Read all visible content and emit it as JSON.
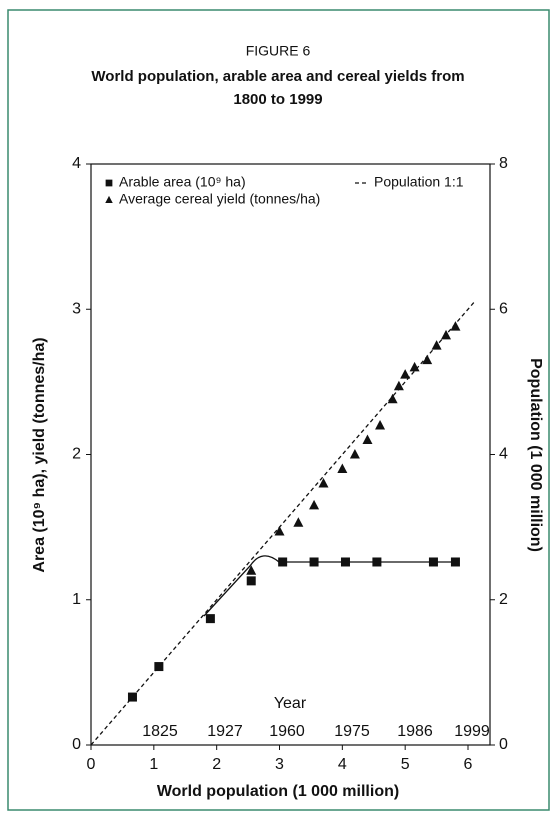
{
  "chart_data": {
    "type": "scatter",
    "figure_label": "FIGURE 6",
    "title": "World population, arable area and cereal yields from",
    "title_line2": "1800 to 1999",
    "xlabel": "World population (1 000 million)",
    "ylabel": "Area (10⁹ ha), yield (tonnes/ha)",
    "y2label": "Population (1 000 million)",
    "xlim": [
      0,
      6.35
    ],
    "xticks": [
      0,
      1,
      2,
      3,
      4,
      5,
      6
    ],
    "ylim": [
      0,
      4
    ],
    "yticks": [
      0,
      1,
      2,
      3,
      4
    ],
    "y2lim": [
      0,
      8
    ],
    "y2ticks": [
      0,
      2,
      4,
      6,
      8
    ],
    "year_title": "Year",
    "years": [
      "1825",
      "1927",
      "1960",
      "1975",
      "1986",
      "1999"
    ],
    "series": [
      {
        "name": "Arable area (10⁹ ha)",
        "marker": "square",
        "color": "#111",
        "x": [
          0.66,
          1.08,
          1.9,
          2.55,
          3.05,
          3.55,
          4.05,
          4.55,
          5.45,
          5.8
        ],
        "values": [
          0.33,
          0.54,
          0.87,
          1.13,
          1.26,
          1.26,
          1.26,
          1.26,
          1.26,
          1.26
        ]
      },
      {
        "name": "Average cereal yield (tonnes/ha)",
        "marker": "triangle",
        "color": "#111",
        "x": [
          2.55,
          3.0,
          3.3,
          3.55,
          3.7,
          4.0,
          4.2,
          4.4,
          4.6,
          4.8,
          4.9,
          5.0,
          5.15,
          5.35,
          5.5,
          5.65,
          5.8
        ],
        "values": [
          1.2,
          1.47,
          1.53,
          1.65,
          1.8,
          1.9,
          2.0,
          2.1,
          2.2,
          2.38,
          2.47,
          2.55,
          2.6,
          2.65,
          2.75,
          2.82,
          2.88
        ]
      },
      {
        "name": "Population 1:1",
        "marker": "dashed-line",
        "color": "#111",
        "x": [
          0,
          6.1
        ],
        "values": [
          0,
          3.05
        ]
      }
    ]
  }
}
